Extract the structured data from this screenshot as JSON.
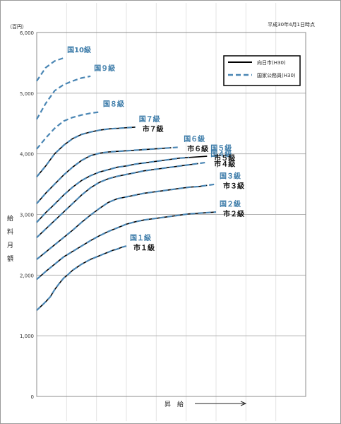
{
  "chart_data": {
    "type": "line",
    "title": "",
    "unit_label": "（百円）",
    "note": "平成30年4月1日時点",
    "ylabel": [
      "給",
      "料",
      "月",
      "額"
    ],
    "xlabel": "昇　給",
    "ylim": [
      0,
      6000
    ],
    "yticks": [
      "0",
      "1,000",
      "2,000",
      "3,000",
      "4,000",
      "5,000",
      "6,000"
    ],
    "ytick_values": [
      0,
      1000,
      2000,
      3000,
      4000,
      5000,
      6000
    ],
    "legend": {
      "placement": "top-right",
      "entries": [
        {
          "label": "向日市(H30)",
          "style": "solid"
        },
        {
          "label": "国家公務員(H30)",
          "style": "dashed"
        }
      ]
    },
    "colors": {
      "national": "#4a86b4",
      "city": "#000000",
      "grid": "#b5b5b5"
    },
    "series": [
      {
        "grade": "1",
        "national_label": "国１級",
        "city_label": "市１級",
        "x": [
          0,
          1,
          2,
          3,
          4,
          5,
          6,
          7,
          8,
          9,
          10,
          11,
          12,
          13,
          14,
          15,
          16,
          17,
          18,
          19,
          20
        ],
        "y": [
          1420,
          1490,
          1560,
          1640,
          1760,
          1860,
          1950,
          2010,
          2080,
          2130,
          2180,
          2220,
          2260,
          2290,
          2320,
          2350,
          2380,
          2410,
          2430,
          2460,
          2480
        ],
        "city_x_end": 20,
        "national_x_end": 20
      },
      {
        "grade": "2",
        "national_label": "国２級",
        "city_label": "市２級",
        "x": [
          0,
          2,
          4,
          6,
          8,
          10,
          12,
          14,
          16,
          18,
          20,
          22,
          24,
          26,
          28,
          30,
          32,
          34,
          36,
          38,
          40
        ],
        "y": [
          1930,
          2060,
          2180,
          2300,
          2390,
          2480,
          2570,
          2650,
          2720,
          2780,
          2840,
          2880,
          2910,
          2930,
          2950,
          2970,
          2990,
          3010,
          3020,
          3030,
          3040
        ],
        "city_x_end": 40,
        "national_x_end": 40
      },
      {
        "grade": "3",
        "national_label": "国３級",
        "city_label": "市３級",
        "x": [
          0,
          2,
          4,
          6,
          8,
          10,
          12,
          14,
          16,
          18,
          20,
          22,
          24,
          26,
          28,
          30,
          32,
          34,
          36,
          38,
          40
        ],
        "y": [
          2260,
          2380,
          2500,
          2620,
          2740,
          2870,
          2990,
          3100,
          3200,
          3260,
          3290,
          3320,
          3350,
          3370,
          3390,
          3410,
          3430,
          3450,
          3460,
          3480,
          3500
        ],
        "city_x_end": 38,
        "national_x_end": 40
      },
      {
        "grade": "4",
        "national_label": "国４級",
        "city_label": "市４級",
        "x": [
          0,
          2,
          4,
          6,
          8,
          10,
          12,
          14,
          16,
          18,
          20,
          22,
          24,
          26,
          28,
          30,
          32,
          34,
          36,
          38
        ],
        "y": [
          2620,
          2760,
          2900,
          3040,
          3180,
          3320,
          3440,
          3530,
          3590,
          3630,
          3660,
          3690,
          3720,
          3740,
          3760,
          3780,
          3800,
          3820,
          3840,
          3860
        ],
        "city_x_end": 36,
        "national_x_end": 38
      },
      {
        "grade": "5",
        "national_label": "国５級",
        "city_label": "市５級",
        "x": [
          0,
          2,
          4,
          6,
          8,
          10,
          12,
          14,
          16,
          18,
          20,
          22,
          24,
          26,
          28,
          30,
          32,
          34,
          36,
          38
        ],
        "y": [
          2870,
          3030,
          3170,
          3320,
          3450,
          3560,
          3640,
          3700,
          3740,
          3780,
          3800,
          3830,
          3850,
          3870,
          3890,
          3910,
          3930,
          3940,
          3950,
          3960
        ],
        "city_x_end": 38,
        "national_x_end": 34
      },
      {
        "grade": "6",
        "national_label": "国６級",
        "city_label": "市６級",
        "x": [
          0,
          2,
          4,
          6,
          8,
          10,
          12,
          14,
          16,
          18,
          20,
          22,
          24,
          26,
          28,
          30,
          32
        ],
        "y": [
          3180,
          3350,
          3500,
          3650,
          3780,
          3890,
          3970,
          4010,
          4030,
          4040,
          4050,
          4060,
          4070,
          4080,
          4090,
          4100,
          4110
        ],
        "city_x_end": 30,
        "national_x_end": 32
      },
      {
        "grade": "7",
        "national_label": "国７級",
        "city_label": "市７級",
        "x": [
          0,
          2,
          4,
          6,
          8,
          10,
          12,
          14,
          16,
          18,
          20,
          22
        ],
        "y": [
          3620,
          3800,
          4000,
          4140,
          4250,
          4320,
          4360,
          4390,
          4410,
          4420,
          4430,
          4440
        ],
        "city_x_end": 22,
        "national_x_end": 22
      },
      {
        "grade": "8",
        "national_label": "国８級",
        "city_label": "",
        "x": [
          0,
          2,
          4,
          6,
          8,
          10,
          12,
          14
        ],
        "y": [
          4080,
          4260,
          4420,
          4540,
          4600,
          4640,
          4670,
          4690
        ],
        "city_x_end": -1,
        "national_x_end": 14
      },
      {
        "grade": "9",
        "national_label": "国９級",
        "city_label": "",
        "x": [
          0,
          2,
          4,
          6,
          8,
          10,
          12
        ],
        "y": [
          4570,
          4830,
          5040,
          5140,
          5200,
          5250,
          5280
        ],
        "city_x_end": -1,
        "national_x_end": 12
      },
      {
        "grade": "10",
        "national_label": "国10級",
        "city_label": "",
        "x": [
          0,
          2,
          4,
          6
        ],
        "y": [
          5200,
          5420,
          5530,
          5580
        ],
        "city_x_end": -1,
        "national_x_end": 6
      }
    ]
  }
}
